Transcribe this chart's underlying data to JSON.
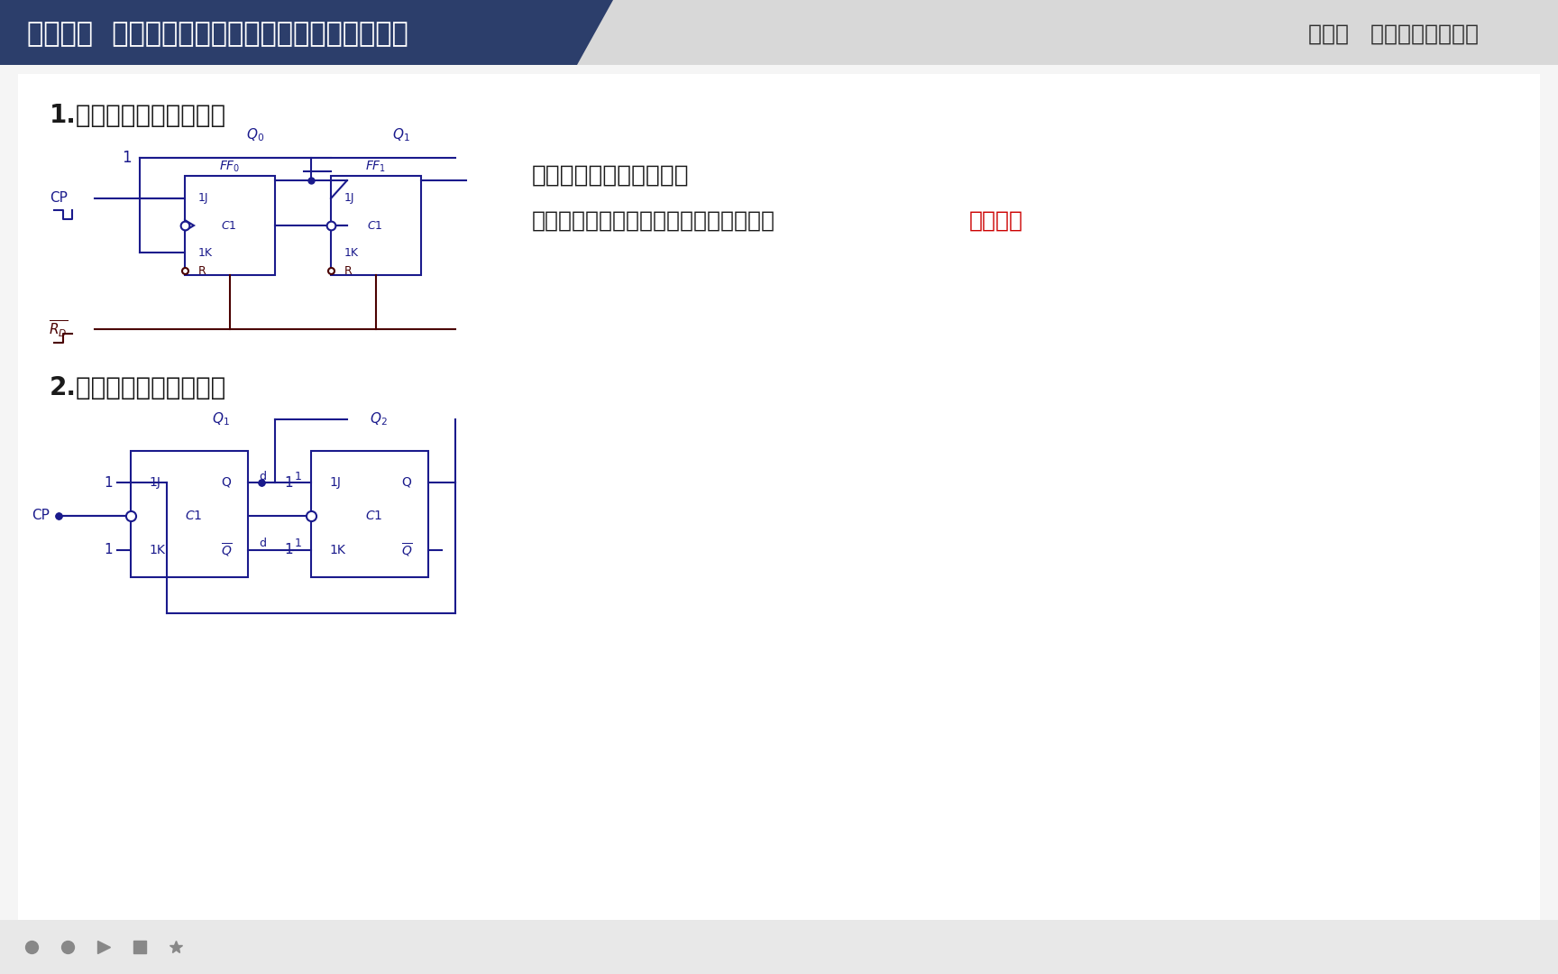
{
  "bg_color": "#f0f0f0",
  "header_left_bg": "#2c3e6b",
  "header_right_bg": "#d8d8d8",
  "header_left_text": "习任务九  触发器应用二（简易同步异步加法电路）",
  "header_right_text": "项目三   简单时序逻辑电路",
  "header_text_color": "#ffffff",
  "header_right_text_color": "#2c2c2c",
  "content_bg": "#f5f5f5",
  "section1_title": "1.四进制异步加法计数器",
  "section2_title": "2.三进制同步加法计数器",
  "right_line1": "分析逻辑电路功能方法：",
  "right_line2_black": "特征表（功能表）、特征方程、状态图、",
  "right_line2_red": "波形图。",
  "text_color": "#1a1a1a",
  "red_color": "#cc0000",
  "circuit_color": "#1a1a8c",
  "circuit_dark": "#4a0000"
}
